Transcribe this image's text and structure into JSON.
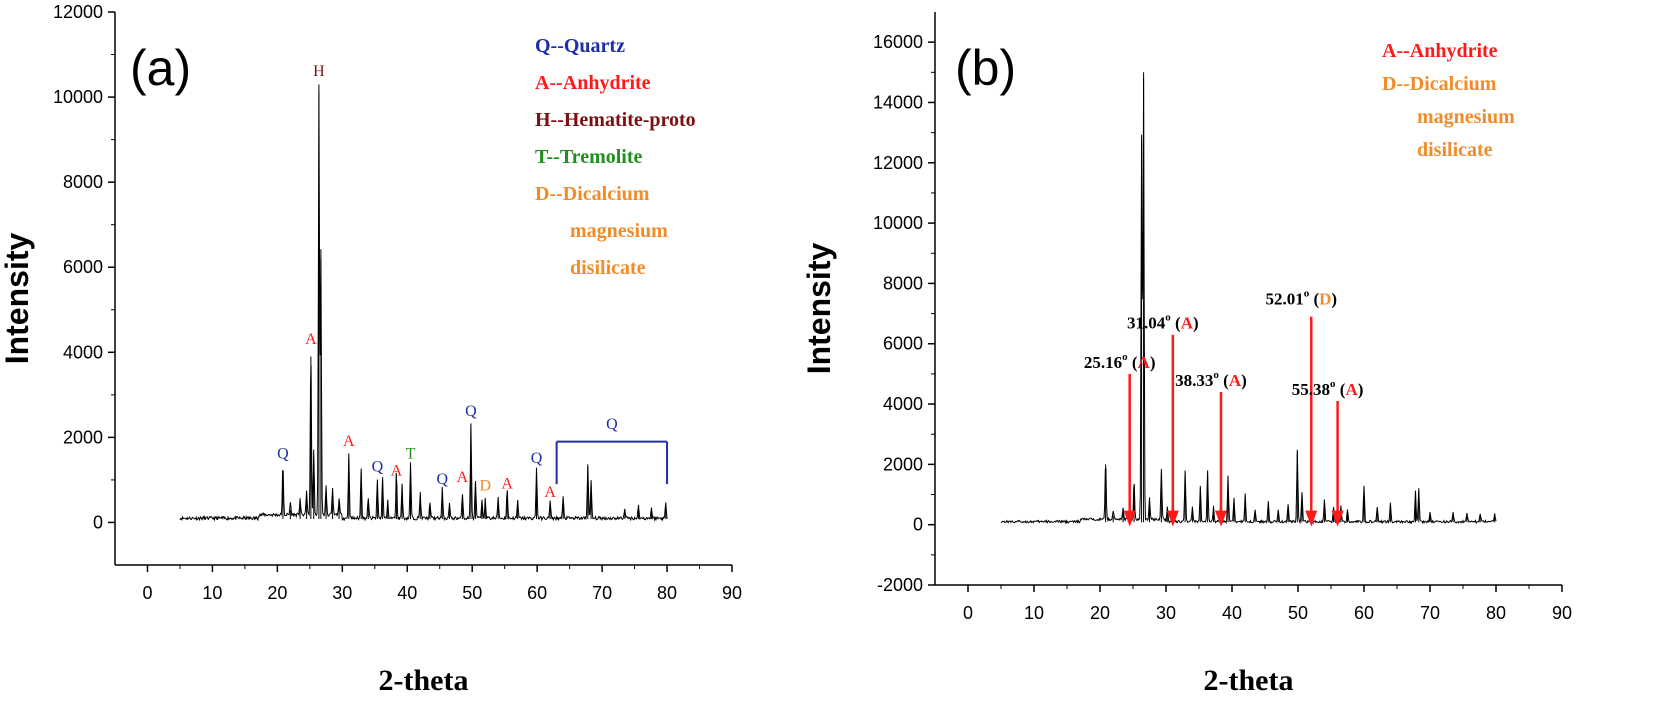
{
  "colors": {
    "quartz": "#1f2fa6",
    "anhydrite": "#ff1a1a",
    "hematite": "#7a1010",
    "tremolite": "#1f8f1f",
    "dicalcium": "#f08c2a",
    "trace": "#000000",
    "arrow": "#ff1a1a"
  },
  "chart_data": [
    {
      "type": "line",
      "panel_label": "(a)",
      "xlabel": "2-theta",
      "ylabel": "Intensity",
      "xlim": [
        -5,
        90
      ],
      "ylim": [
        -1000,
        12000
      ],
      "x_ticks": [
        0,
        10,
        20,
        30,
        40,
        50,
        60,
        70,
        80,
        90
      ],
      "y_ticks": [
        0,
        2000,
        4000,
        6000,
        8000,
        10000,
        12000
      ],
      "legend": [
        {
          "text": "Q--Quartz",
          "color": "#1f2fa6"
        },
        {
          "text": "A--Anhydrite",
          "color": "#ff1a1a"
        },
        {
          "text": "H--Hematite-proto",
          "color": "#7a1010"
        },
        {
          "text": "T--Tremolite",
          "color": "#1f8f1f"
        },
        {
          "text": "D--Dicalcium",
          "color": "#f08c2a"
        },
        {
          "text": "magnesium",
          "color": "#f08c2a"
        },
        {
          "text": "disilicate",
          "color": "#f08c2a"
        }
      ],
      "peaks": [
        {
          "x": 20.85,
          "y": 1200
        },
        {
          "x": 22.0,
          "y": 300
        },
        {
          "x": 23.5,
          "y": 400
        },
        {
          "x": 24.5,
          "y": 600
        },
        {
          "x": 25.16,
          "y": 3900
        },
        {
          "x": 25.6,
          "y": 1500
        },
        {
          "x": 26.4,
          "y": 10100
        },
        {
          "x": 26.7,
          "y": 6200
        },
        {
          "x": 27.5,
          "y": 700
        },
        {
          "x": 28.5,
          "y": 600
        },
        {
          "x": 29.5,
          "y": 400
        },
        {
          "x": 31.0,
          "y": 1500
        },
        {
          "x": 32.9,
          "y": 1200
        },
        {
          "x": 34.0,
          "y": 500
        },
        {
          "x": 35.4,
          "y": 900
        },
        {
          "x": 36.2,
          "y": 1000
        },
        {
          "x": 37.0,
          "y": 400
        },
        {
          "x": 38.33,
          "y": 1100
        },
        {
          "x": 39.2,
          "y": 800
        },
        {
          "x": 40.5,
          "y": 1300
        },
        {
          "x": 42.0,
          "y": 600
        },
        {
          "x": 43.5,
          "y": 400
        },
        {
          "x": 45.4,
          "y": 700
        },
        {
          "x": 46.5,
          "y": 350
        },
        {
          "x": 48.5,
          "y": 600
        },
        {
          "x": 49.8,
          "y": 2200
        },
        {
          "x": 50.5,
          "y": 900
        },
        {
          "x": 51.5,
          "y": 400
        },
        {
          "x": 52.01,
          "y": 500
        },
        {
          "x": 54.0,
          "y": 500
        },
        {
          "x": 55.38,
          "y": 700
        },
        {
          "x": 57.0,
          "y": 400
        },
        {
          "x": 59.9,
          "y": 1200
        },
        {
          "x": 62.0,
          "y": 400
        },
        {
          "x": 64.0,
          "y": 500
        },
        {
          "x": 67.8,
          "y": 1300
        },
        {
          "x": 68.3,
          "y": 900
        },
        {
          "x": 73.5,
          "y": 250
        },
        {
          "x": 75.6,
          "y": 300
        },
        {
          "x": 77.6,
          "y": 250
        },
        {
          "x": 79.8,
          "y": 350
        }
      ],
      "phase_labels": [
        {
          "text": "Q",
          "phase": "quartz",
          "x": 20.85,
          "y": 1500
        },
        {
          "text": "H",
          "phase": "hematite",
          "x": 26.4,
          "y": 10500
        },
        {
          "text": "A",
          "phase": "anhydrite",
          "x": 25.16,
          "y": 4200
        },
        {
          "text": "A",
          "phase": "anhydrite",
          "x": 31.0,
          "y": 1800
        },
        {
          "text": "Q",
          "phase": "quartz",
          "x": 35.4,
          "y": 1200
        },
        {
          "text": "A",
          "phase": "anhydrite",
          "x": 38.33,
          "y": 1100
        },
        {
          "text": "T",
          "phase": "tremolite",
          "x": 40.5,
          "y": 1500
        },
        {
          "text": "Q",
          "phase": "quartz",
          "x": 45.4,
          "y": 900
        },
        {
          "text": "A",
          "phase": "anhydrite",
          "x": 48.5,
          "y": 950
        },
        {
          "text": "Q",
          "phase": "quartz",
          "x": 49.8,
          "y": 2500
        },
        {
          "text": "D",
          "phase": "dicalcium",
          "x": 52.01,
          "y": 750
        },
        {
          "text": "A",
          "phase": "anhydrite",
          "x": 55.38,
          "y": 800
        },
        {
          "text": "Q",
          "phase": "quartz",
          "x": 59.9,
          "y": 1400
        },
        {
          "text": "A",
          "phase": "anhydrite",
          "x": 62.0,
          "y": 600
        },
        {
          "text": "Q",
          "phase": "quartz",
          "x": 71.5,
          "y": 2200
        }
      ],
      "bracket": {
        "x_start": 63,
        "x_end": 80,
        "y_top": 1900,
        "y_bottom": 900,
        "phase": "quartz"
      }
    },
    {
      "type": "line",
      "panel_label": "(b)",
      "xlabel": "2-theta",
      "ylabel": "Intensity",
      "xlim": [
        -5,
        90
      ],
      "ylim": [
        -2000,
        17000
      ],
      "x_ticks": [
        0,
        10,
        20,
        30,
        40,
        50,
        60,
        70,
        80,
        90
      ],
      "y_ticks": [
        -2000,
        0,
        2000,
        4000,
        6000,
        8000,
        10000,
        12000,
        14000,
        16000
      ],
      "legend": [
        {
          "text": "A--Anhydrite",
          "color": "#ff1a1a"
        },
        {
          "text": "D--Dicalcium",
          "color": "#f08c2a"
        },
        {
          "text": "magnesium",
          "color": "#f08c2a"
        },
        {
          "text": "disilicate",
          "color": "#f08c2a"
        }
      ],
      "peaks": [
        {
          "x": 20.85,
          "y": 2000
        },
        {
          "x": 22.0,
          "y": 300
        },
        {
          "x": 23.5,
          "y": 400
        },
        {
          "x": 24.5,
          "y": 500
        },
        {
          "x": 25.16,
          "y": 1300
        },
        {
          "x": 26.3,
          "y": 12700
        },
        {
          "x": 26.6,
          "y": 14800
        },
        {
          "x": 27.5,
          "y": 700
        },
        {
          "x": 29.3,
          "y": 1700
        },
        {
          "x": 30.2,
          "y": 500
        },
        {
          "x": 31.04,
          "y": 900
        },
        {
          "x": 32.9,
          "y": 1700
        },
        {
          "x": 34.0,
          "y": 500
        },
        {
          "x": 35.2,
          "y": 1200
        },
        {
          "x": 36.3,
          "y": 1700
        },
        {
          "x": 37.2,
          "y": 500
        },
        {
          "x": 38.33,
          "y": 900
        },
        {
          "x": 39.4,
          "y": 1500
        },
        {
          "x": 40.3,
          "y": 800
        },
        {
          "x": 42.0,
          "y": 900
        },
        {
          "x": 43.5,
          "y": 400
        },
        {
          "x": 45.5,
          "y": 700
        },
        {
          "x": 47.0,
          "y": 400
        },
        {
          "x": 48.5,
          "y": 600
        },
        {
          "x": 49.9,
          "y": 2400
        },
        {
          "x": 50.6,
          "y": 1000
        },
        {
          "x": 52.01,
          "y": 600
        },
        {
          "x": 54.0,
          "y": 700
        },
        {
          "x": 55.38,
          "y": 500
        },
        {
          "x": 56.5,
          "y": 500
        },
        {
          "x": 57.5,
          "y": 400
        },
        {
          "x": 60.0,
          "y": 1200
        },
        {
          "x": 62.0,
          "y": 500
        },
        {
          "x": 64.0,
          "y": 600
        },
        {
          "x": 67.8,
          "y": 1000
        },
        {
          "x": 68.3,
          "y": 1100
        },
        {
          "x": 70.0,
          "y": 300
        },
        {
          "x": 73.5,
          "y": 300
        },
        {
          "x": 75.6,
          "y": 300
        },
        {
          "x": 77.6,
          "y": 300
        },
        {
          "x": 79.8,
          "y": 300
        }
      ],
      "annotations": [
        {
          "value": "25.16",
          "phase_letter": "A",
          "phase": "anhydrite",
          "x": 24.5,
          "arrow_top": 5000,
          "arrow_bottom": 0,
          "label_y": 5200
        },
        {
          "value": "31.04",
          "phase_letter": "A",
          "phase": "anhydrite",
          "x": 31.04,
          "arrow_top": 6300,
          "arrow_bottom": 0,
          "label_y": 6500
        },
        {
          "value": "38.33",
          "phase_letter": "A",
          "phase": "anhydrite",
          "x": 38.33,
          "arrow_top": 4400,
          "arrow_bottom": 0,
          "label_y": 4600
        },
        {
          "value": "52.01",
          "phase_letter": "D",
          "phase": "dicalcium",
          "x": 52.01,
          "arrow_top": 6900,
          "arrow_bottom": 0,
          "label_y": 7300
        },
        {
          "value": "55.38",
          "phase_letter": "A",
          "phase": "anhydrite",
          "x": 56.0,
          "arrow_top": 4100,
          "arrow_bottom": 0,
          "label_y": 4300
        }
      ]
    }
  ]
}
